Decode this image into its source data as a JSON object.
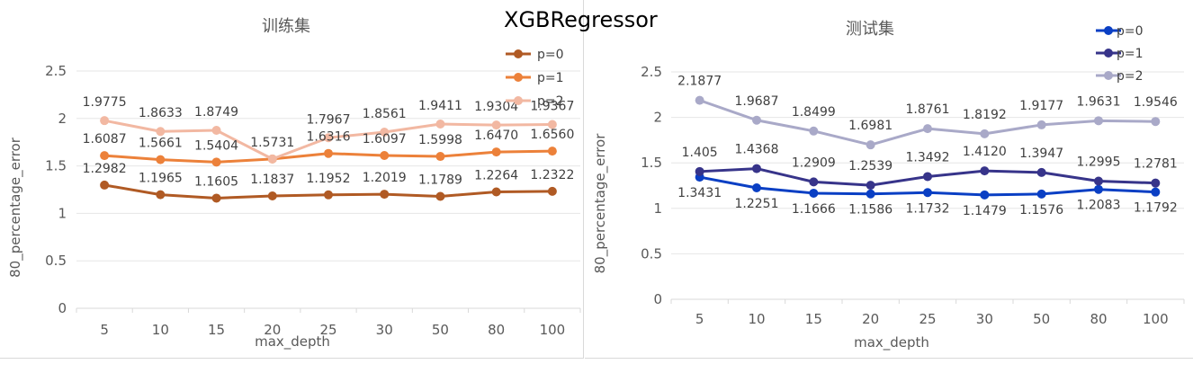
{
  "main_title": "XGBRegressor",
  "chart_data": [
    {
      "type": "line",
      "title": "训练集",
      "xlabel": "max_depth",
      "ylabel": "80_percentage_error",
      "categories": [
        "5",
        "10",
        "15",
        "20",
        "25",
        "30",
        "50",
        "80",
        "100"
      ],
      "ylim": [
        0,
        2.5
      ],
      "yticks": [
        "0",
        "0.5",
        "1",
        "1.5",
        "2",
        "2.5"
      ],
      "grid": true,
      "legend_position": "top-right",
      "series": [
        {
          "name": "p=0",
          "color": "#b05a24",
          "values": [
            1.2982,
            1.1965,
            1.1605,
            1.1837,
            1.1952,
            1.2019,
            1.1789,
            1.2264,
            1.2322
          ],
          "labels": [
            "1.2982",
            "1.1965",
            "1.1605",
            "1.1837",
            "1.1952",
            "1.2019",
            "1.1789",
            "1.2264",
            "1.2322"
          ]
        },
        {
          "name": "p=1",
          "color": "#ec813a",
          "values": [
            1.6087,
            1.5661,
            1.5404,
            1.5731,
            1.6316,
            1.6097,
            1.5998,
            1.647,
            1.656
          ],
          "labels": [
            "1.6087",
            "1.5661",
            "1.5404",
            "1.5731",
            "1.6316",
            "1.6097",
            "1.5998",
            "1.6470",
            "1.6560"
          ]
        },
        {
          "name": "p=2",
          "color": "#f2b8a2",
          "values": [
            1.9775,
            1.8633,
            1.8749,
            1.5731,
            1.7967,
            1.8561,
            1.9411,
            1.9304,
            1.9367
          ],
          "labels": [
            "1.9775",
            "1.8633",
            "1.8749",
            "",
            "1.7967",
            "1.8561",
            "1.9411",
            "1.9304",
            "1.9367"
          ]
        }
      ]
    },
    {
      "type": "line",
      "title": "测试集",
      "xlabel": "max_depth",
      "ylabel": "80_percentage_error",
      "categories": [
        "5",
        "10",
        "15",
        "20",
        "25",
        "30",
        "50",
        "80",
        "100"
      ],
      "ylim": [
        0,
        2.5
      ],
      "yticks": [
        "0",
        "0.5",
        "1",
        "1.5",
        "2",
        "2.5"
      ],
      "grid": true,
      "legend_position": "top-right",
      "series": [
        {
          "name": "p=0",
          "color": "#0a3fc4",
          "values": [
            1.3431,
            1.2251,
            1.1666,
            1.1586,
            1.1732,
            1.1479,
            1.1576,
            1.2083,
            1.1792
          ],
          "labels": [
            "1.3431",
            "1.2251",
            "1.1666",
            "1.1586",
            "1.1732",
            "1.1479",
            "1.1576",
            "1.2083",
            "1.1792"
          ]
        },
        {
          "name": "p=1",
          "color": "#37348a",
          "values": [
            1.405,
            1.4368,
            1.2909,
            1.2539,
            1.3492,
            1.412,
            1.3947,
            1.2995,
            1.2781
          ],
          "labels": [
            "1.405",
            "1.4368",
            "1.2909",
            "1.2539",
            "1.3492",
            "1.4120",
            "1.3947",
            "1.2995",
            "1.2781"
          ]
        },
        {
          "name": "p=2",
          "color": "#a9a9c8",
          "values": [
            2.1877,
            1.9687,
            1.8499,
            1.6981,
            1.8761,
            1.8192,
            1.9177,
            1.9631,
            1.9546
          ],
          "labels": [
            "2.1877",
            "1.9687",
            "1.8499",
            "1.6981",
            "1.8761",
            "1.8192",
            "1.9177",
            "1.9631",
            "1.9546"
          ]
        }
      ]
    }
  ]
}
